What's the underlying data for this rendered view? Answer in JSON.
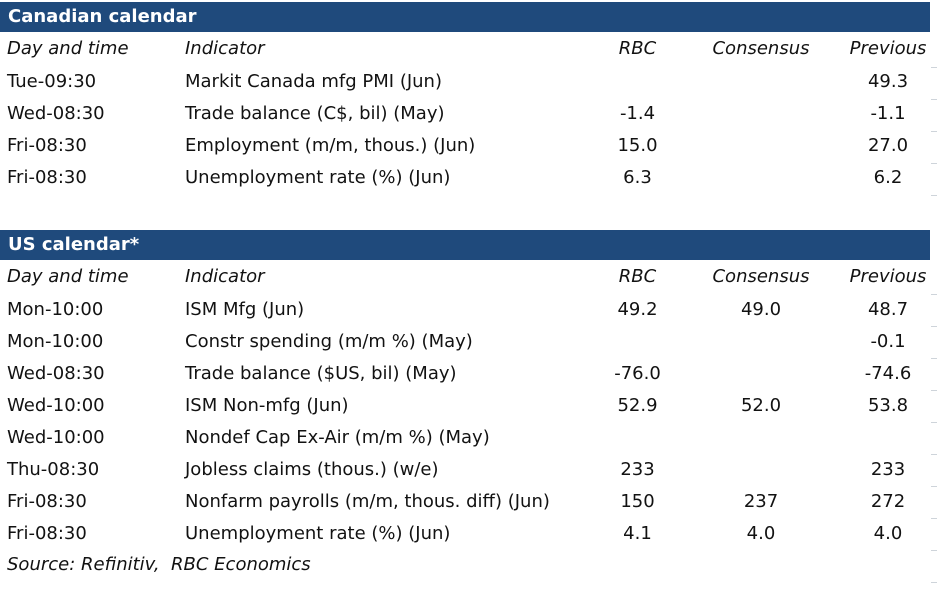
{
  "colors": {
    "bar": "#1F4A7C",
    "bar_text": "#FFFFFF",
    "text": "#121212",
    "tick": "#C8CFD6"
  },
  "tables": [
    {
      "title": "Canadian calendar",
      "columns": [
        "Day and time",
        "Indicator",
        "RBC",
        "Consensus",
        "Previous"
      ],
      "rows": [
        {
          "day": "Tue-09:30",
          "indicator": "Markit Canada mfg PMI (Jun)",
          "rbc": "",
          "consensus": "",
          "previous": "49.3"
        },
        {
          "day": "Wed-08:30",
          "indicator": "Trade balance (C$, bil) (May)",
          "rbc": "-1.4",
          "consensus": "",
          "previous": "-1.1"
        },
        {
          "day": "Fri-08:30",
          "indicator": "Employment (m/m, thous.) (Jun)",
          "rbc": "15.0",
          "consensus": "",
          "previous": "27.0"
        },
        {
          "day": "Fri-08:30",
          "indicator": "Unemployment rate (%) (Jun)",
          "rbc": "6.3",
          "consensus": "",
          "previous": "6.2"
        }
      ]
    },
    {
      "title": "US calendar*",
      "columns": [
        "Day and time",
        "Indicator",
        "RBC",
        "Consensus",
        "Previous"
      ],
      "rows": [
        {
          "day": "Mon-10:00",
          "indicator": "ISM Mfg (Jun)",
          "rbc": "49.2",
          "consensus": "49.0",
          "previous": "48.7"
        },
        {
          "day": "Mon-10:00",
          "indicator": "Constr spending (m/m %) (May)",
          "rbc": "",
          "consensus": "",
          "previous": "-0.1"
        },
        {
          "day": "Wed-08:30",
          "indicator": "Trade balance ($US, bil) (May)",
          "rbc": "-76.0",
          "consensus": "",
          "previous": "-74.6"
        },
        {
          "day": "Wed-10:00",
          "indicator": "ISM Non-mfg (Jun)",
          "rbc": "52.9",
          "consensus": "52.0",
          "previous": "53.8"
        },
        {
          "day": "Wed-10:00",
          "indicator": "Nondef Cap Ex-Air (m/m %) (May)",
          "rbc": "",
          "consensus": "",
          "previous": ""
        },
        {
          "day": "Thu-08:30",
          "indicator": "Jobless claims (thous.) (w/e)",
          "rbc": "233",
          "consensus": "",
          "previous": "233"
        },
        {
          "day": "Fri-08:30",
          "indicator": "Nonfarm payrolls (m/m, thous. diff) (Jun)",
          "rbc": "150",
          "consensus": "237",
          "previous": "272"
        },
        {
          "day": "Fri-08:30",
          "indicator": "Unemployment rate (%) (Jun)",
          "rbc": "4.1",
          "consensus": "4.0",
          "previous": "4.0"
        }
      ]
    }
  ],
  "source": "Source: Refinitiv,  RBC Economics"
}
